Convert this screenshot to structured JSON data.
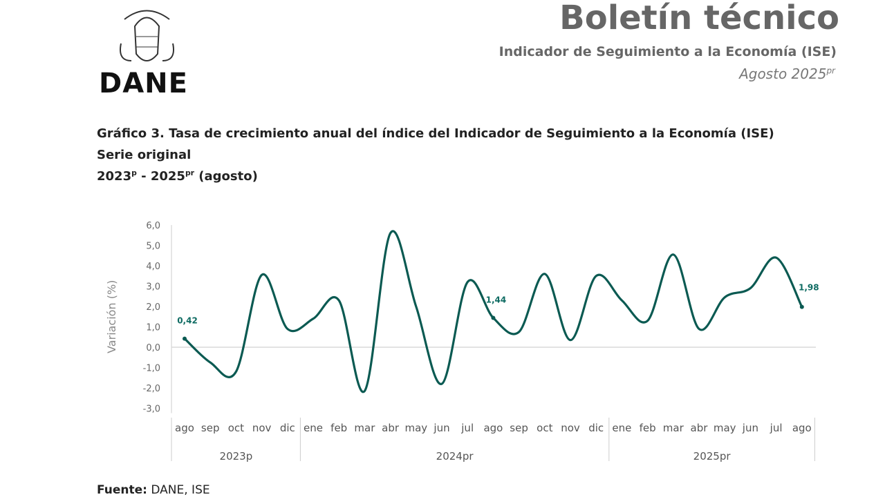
{
  "header": {
    "logo_text": "DANE",
    "title": "Boletín técnico",
    "subtitle": "Indicador de Seguimiento a la Economía (ISE)",
    "date": "Agosto 2025",
    "date_sup": "pr"
  },
  "chart_header": {
    "line1": "Gráfico 3. Tasa de crecimiento anual del índice del Indicador de Seguimiento a la Economía (ISE)",
    "line2": "Serie original",
    "line3_a": "2023",
    "line3_a_sup": "p",
    "line3_b": " - 2025",
    "line3_b_sup": "pr",
    "line3_c": " (agosto)"
  },
  "source": {
    "label": "Fuente:",
    "text": " DANE, ISE"
  },
  "chart_data": {
    "type": "line",
    "ylabel": "Variación (%)",
    "ylim": [
      -3.0,
      6.0
    ],
    "yticks": [
      "6,0",
      "5,0",
      "4,0",
      "3,0",
      "2,0",
      "1,0",
      "0,0",
      "-1,0",
      "-2,0",
      "-3,0"
    ],
    "categories": [
      "ago",
      "sep",
      "oct",
      "nov",
      "dic",
      "ene",
      "feb",
      "mar",
      "abr",
      "may",
      "jun",
      "jul",
      "ago",
      "sep",
      "oct",
      "nov",
      "dic",
      "ene",
      "feb",
      "mar",
      "abr",
      "may",
      "jun",
      "jul",
      "ago"
    ],
    "groups": [
      {
        "label": "2023p",
        "count": 5
      },
      {
        "label": "2024pr",
        "count": 12
      },
      {
        "label": "2025pr",
        "count": 8
      }
    ],
    "values": [
      0.42,
      -0.75,
      -1.2,
      3.55,
      0.9,
      1.4,
      2.3,
      -2.15,
      5.6,
      2.0,
      -1.8,
      3.2,
      1.44,
      0.75,
      3.6,
      0.35,
      3.5,
      2.3,
      1.3,
      4.55,
      0.9,
      2.45,
      2.9,
      4.4,
      1.98
    ],
    "data_labels": [
      {
        "index": 0,
        "text": "0,42"
      },
      {
        "index": 12,
        "text": "1,44"
      },
      {
        "index": 24,
        "text": "1,98"
      }
    ],
    "line_color": "#0b5a52",
    "label_color": "#0e6b62",
    "grid": false
  }
}
